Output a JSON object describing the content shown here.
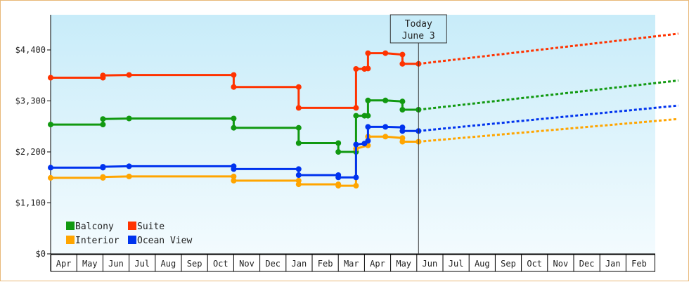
{
  "chart_data": {
    "type": "line",
    "title": "",
    "xlabel": "",
    "ylabel": "",
    "ylim": [
      0,
      4800
    ],
    "y_ticks": [
      {
        "value": 0,
        "label": "$0"
      },
      {
        "value": 1100,
        "label": "$1,100"
      },
      {
        "value": 2200,
        "label": "$2,200"
      },
      {
        "value": 3300,
        "label": "$3,300"
      },
      {
        "value": 4400,
        "label": "$4,400"
      }
    ],
    "x_axis": {
      "start": "2023-04-01",
      "end": "2025-03-01",
      "month_labels": [
        "Apr",
        "May",
        "Jun",
        "Jul",
        "Aug",
        "Sep",
        "Oct",
        "Nov",
        "Dec",
        "Jan",
        "Feb",
        "Mar",
        "Apr",
        "May",
        "Jun",
        "Jul",
        "Aug",
        "Sep",
        "Oct",
        "Nov",
        "Dec",
        "Jan",
        "Feb"
      ]
    },
    "grid": false,
    "legend_position": "bottom-left",
    "today_marker": {
      "date": "2024-06-03",
      "line1": "Today",
      "line2": "June 3"
    },
    "series": [
      {
        "name": "Balcony",
        "color": "#119911",
        "history": [
          [
            "2023-04-01",
            2790
          ],
          [
            "2023-06-01",
            2790
          ],
          [
            "2023-06-01",
            2910
          ],
          [
            "2023-07-01",
            2920
          ],
          [
            "2023-11-01",
            2920
          ],
          [
            "2023-11-01",
            2720
          ],
          [
            "2024-01-16",
            2720
          ],
          [
            "2024-01-16",
            2390
          ],
          [
            "2024-03-01",
            2390
          ],
          [
            "2024-03-01",
            2200
          ],
          [
            "2024-03-22",
            2200
          ],
          [
            "2024-03-22",
            2980
          ],
          [
            "2024-04-01",
            2980
          ],
          [
            "2024-04-05",
            2980
          ],
          [
            "2024-04-05",
            3310
          ],
          [
            "2024-04-25",
            3310
          ],
          [
            "2024-05-15",
            3290
          ],
          [
            "2024-05-15",
            3110
          ],
          [
            "2024-06-03",
            3110
          ]
        ],
        "projection": [
          [
            "2024-06-03",
            3110
          ],
          [
            "2025-04-01",
            3740
          ]
        ]
      },
      {
        "name": "Suite",
        "color": "#ff3300",
        "history": [
          [
            "2023-04-01",
            3800
          ],
          [
            "2023-06-01",
            3800
          ],
          [
            "2023-06-01",
            3850
          ],
          [
            "2023-07-01",
            3860
          ],
          [
            "2023-11-01",
            3860
          ],
          [
            "2023-11-01",
            3600
          ],
          [
            "2024-01-16",
            3600
          ],
          [
            "2024-01-16",
            3150
          ],
          [
            "2024-03-22",
            3150
          ],
          [
            "2024-03-22",
            3990
          ],
          [
            "2024-04-01",
            3990
          ],
          [
            "2024-04-05",
            4000
          ],
          [
            "2024-04-05",
            4330
          ],
          [
            "2024-04-25",
            4330
          ],
          [
            "2024-05-15",
            4300
          ],
          [
            "2024-05-15",
            4100
          ],
          [
            "2024-06-03",
            4100
          ]
        ],
        "projection": [
          [
            "2024-06-03",
            4100
          ],
          [
            "2025-04-01",
            4750
          ]
        ]
      },
      {
        "name": "Interior",
        "color": "#ffa500",
        "history": [
          [
            "2023-04-01",
            1640
          ],
          [
            "2023-06-01",
            1640
          ],
          [
            "2023-06-01",
            1660
          ],
          [
            "2023-07-01",
            1670
          ],
          [
            "2023-11-01",
            1670
          ],
          [
            "2023-11-01",
            1580
          ],
          [
            "2024-01-16",
            1580
          ],
          [
            "2024-01-16",
            1500
          ],
          [
            "2024-03-01",
            1500
          ],
          [
            "2024-03-01",
            1470
          ],
          [
            "2024-03-22",
            1470
          ],
          [
            "2024-03-22",
            2270
          ],
          [
            "2024-04-05",
            2340
          ],
          [
            "2024-04-05",
            2530
          ],
          [
            "2024-04-25",
            2530
          ],
          [
            "2024-05-15",
            2500
          ],
          [
            "2024-05-15",
            2420
          ],
          [
            "2024-06-03",
            2420
          ]
        ],
        "projection": [
          [
            "2024-06-03",
            2420
          ],
          [
            "2025-04-01",
            2910
          ]
        ]
      },
      {
        "name": "Ocean View",
        "color": "#0033ee",
        "history": [
          [
            "2023-04-01",
            1860
          ],
          [
            "2023-06-01",
            1860
          ],
          [
            "2023-06-01",
            1880
          ],
          [
            "2023-07-01",
            1890
          ],
          [
            "2023-11-01",
            1890
          ],
          [
            "2023-11-01",
            1830
          ],
          [
            "2024-01-16",
            1830
          ],
          [
            "2024-01-16",
            1700
          ],
          [
            "2024-03-01",
            1700
          ],
          [
            "2024-03-01",
            1650
          ],
          [
            "2024-03-22",
            1650
          ],
          [
            "2024-03-22",
            2360
          ],
          [
            "2024-04-01",
            2380
          ],
          [
            "2024-04-05",
            2440
          ],
          [
            "2024-04-05",
            2740
          ],
          [
            "2024-04-25",
            2740
          ],
          [
            "2024-05-15",
            2730
          ],
          [
            "2024-05-15",
            2650
          ],
          [
            "2024-06-03",
            2650
          ]
        ],
        "projection": [
          [
            "2024-06-03",
            2650
          ],
          [
            "2025-04-01",
            3200
          ]
        ]
      }
    ],
    "legend_order": [
      "Balcony",
      "Suite",
      "Interior",
      "Ocean View"
    ]
  }
}
